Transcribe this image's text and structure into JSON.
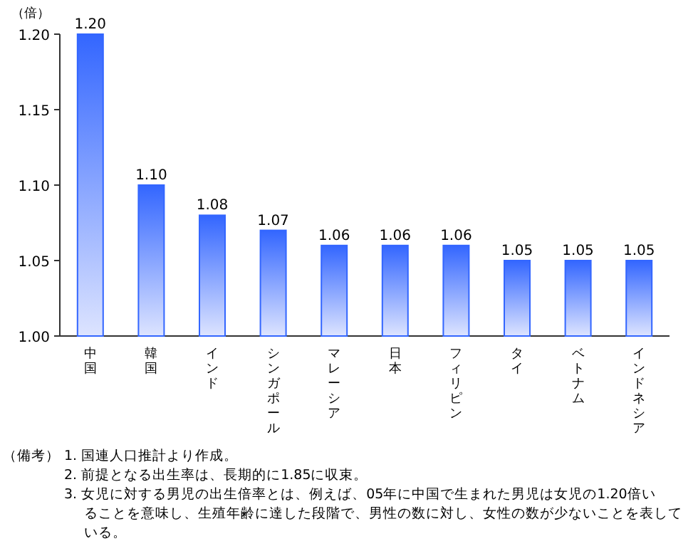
{
  "chart_data": {
    "type": "bar",
    "ylabel": "（倍）",
    "categories": [
      "中国",
      "韓国",
      "インド",
      "シンガポール",
      "マレーシア",
      "日本",
      "フィリピン",
      "タイ",
      "ベトナム",
      "インドネシア"
    ],
    "values": [
      1.2,
      1.1,
      1.08,
      1.07,
      1.06,
      1.06,
      1.06,
      1.05,
      1.05,
      1.05
    ],
    "value_labels": [
      "1.20",
      "1.10",
      "1.08",
      "1.07",
      "1.06",
      "1.06",
      "1.06",
      "1.05",
      "1.05",
      "1.05"
    ],
    "color": "#3366ff",
    "ylim": [
      1.0,
      1.2
    ],
    "yticks": [
      {
        "value": 1.0,
        "label": "1.00"
      },
      {
        "value": 1.05,
        "label": "1.05"
      },
      {
        "value": 1.1,
        "label": "1.10"
      },
      {
        "value": 1.15,
        "label": "1.15"
      },
      {
        "value": 1.2,
        "label": "1.20"
      }
    ],
    "grid": false,
    "annotations": [
      "（備考）",
      "1. 国連人口推計より作成。",
      "2. 前提となる出生率は、長期的に1.85に収束。",
      "3. 女児に対する男児の出生倍率とは、例えば、05年に中国で生まれた男児は女児の1.20倍いることを意味し、生殖年齢に達した段階で、男性の数に対し、女性の数が少ないことを表している。"
    ]
  }
}
